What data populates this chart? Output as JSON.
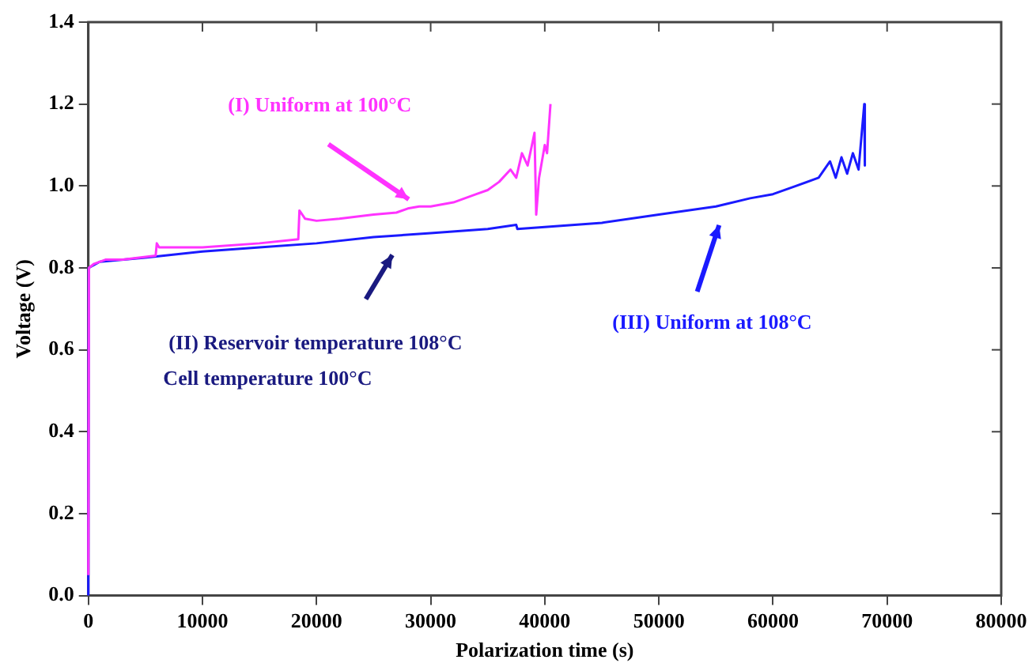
{
  "chart_data": {
    "type": "line",
    "xlabel": "Polarization time (s)",
    "ylabel": "Voltage (V)",
    "xlim": [
      0,
      80000
    ],
    "xticks": [
      0,
      10000,
      20000,
      30000,
      40000,
      50000,
      60000,
      70000,
      80000
    ],
    "ylim": [
      0,
      1.4
    ],
    "yticks": [
      {
        "value": 0,
        "label": "0.0"
      },
      {
        "value": 0.2,
        "label": "0.2"
      },
      {
        "value": 0.4,
        "label": "0.4"
      },
      {
        "value": 0.6,
        "label": "0.6"
      },
      {
        "value": 0.8,
        "label": "0.8"
      },
      {
        "value": 1,
        "label": "1.0"
      },
      {
        "value": 1.2,
        "label": "1.2"
      },
      {
        "value": 1.4,
        "label": "1.4"
      }
    ],
    "grid": false,
    "legend": false,
    "marker": "none",
    "line_style": "solid",
    "series": [
      {
        "color": "#ff33ff",
        "x": [
          0,
          50,
          500,
          1500,
          3000,
          5900,
          6000,
          6200,
          10000,
          15000,
          18400,
          18500,
          19000,
          20000,
          22000,
          25000,
          27000,
          28000,
          29000,
          30000,
          32000,
          34000,
          35000,
          36000,
          37000,
          37500,
          38000,
          38500,
          39100,
          39250,
          39500,
          40000,
          40200,
          40500
        ],
        "values": [
          0.05,
          0.8,
          0.81,
          0.82,
          0.82,
          0.83,
          0.86,
          0.85,
          0.85,
          0.86,
          0.87,
          0.94,
          0.92,
          0.915,
          0.92,
          0.93,
          0.935,
          0.945,
          0.95,
          0.95,
          0.96,
          0.98,
          0.99,
          1.01,
          1.04,
          1.02,
          1.08,
          1.05,
          1.13,
          0.93,
          1.02,
          1.1,
          1.08,
          1.2
        ]
      },
      {
        "color": "#1a1aff",
        "x": [
          0,
          30,
          1000,
          5000,
          10000,
          15000,
          20000,
          25000,
          30000,
          35000,
          37500,
          37600,
          40000,
          45000,
          50000,
          55000,
          58000,
          60000,
          62000,
          64000,
          65000,
          65500,
          66000,
          66500,
          67000,
          67500,
          68000,
          68050
        ],
        "values": [
          0,
          0.8,
          0.815,
          0.825,
          0.84,
          0.85,
          0.86,
          0.875,
          0.885,
          0.895,
          0.905,
          0.895,
          0.9,
          0.91,
          0.93,
          0.95,
          0.97,
          0.98,
          1.0,
          1.02,
          1.06,
          1.02,
          1.07,
          1.03,
          1.08,
          1.04,
          1.2,
          1.05
        ]
      }
    ],
    "annotations": [
      "(I) Uniform at 100°C",
      "(II) Reservoir temperature 108°C",
      "Cell temperature 100°C",
      "(III) Uniform at 108°C"
    ]
  }
}
